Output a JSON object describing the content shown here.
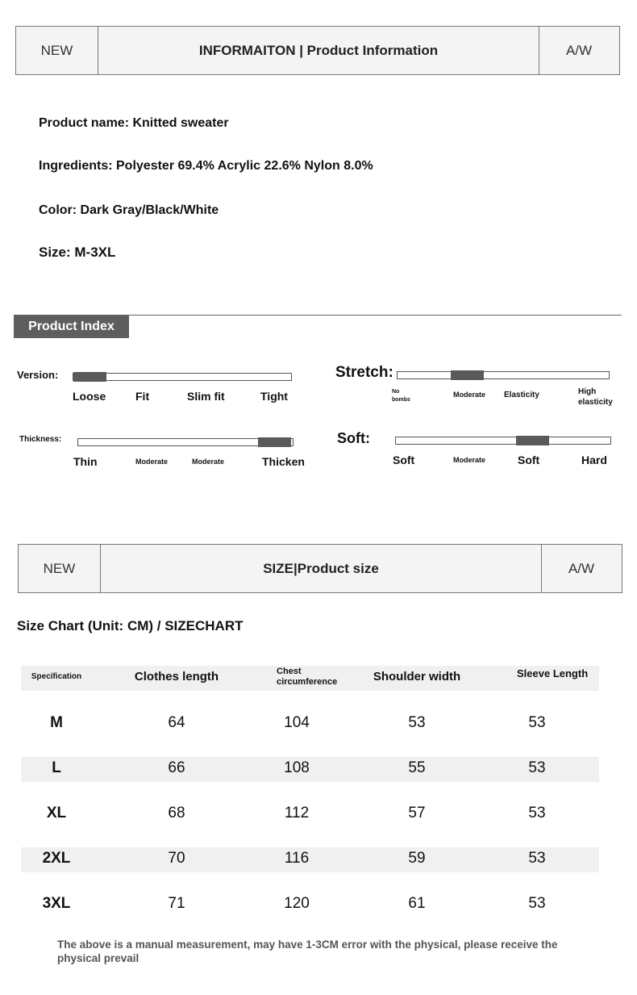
{
  "header1": {
    "left": "NEW",
    "title": "INFORMAITON | Product Information",
    "right": "A/W"
  },
  "info": [
    "Product name: Knitted sweater",
    "Ingredients: Polyester 69.4% Acrylic 22.6% Nylon 8.0%",
    "Color: Dark Gray/Black/White",
    "Size: M-3XL"
  ],
  "index": {
    "title": "Product Index",
    "version": {
      "label": "Version:",
      "level": 0,
      "ticks": [
        "Loose",
        "Fit",
        "Slim fit",
        "Tight"
      ]
    },
    "stretch": {
      "label": "Stretch:",
      "level": 0.3,
      "ticks": [
        "No bombs",
        "Moderate",
        "Elasticity",
        "High elasticity"
      ]
    },
    "thickness": {
      "label": "Thickness:",
      "level": 0.99,
      "ticks": [
        "Thin",
        "Moderate",
        "Moderate",
        "Thicken"
      ]
    },
    "soft": {
      "label": "Soft:",
      "level": 0.66,
      "ticks": [
        "Soft",
        "Moderate",
        "Soft",
        "Hard"
      ]
    }
  },
  "header2": {
    "left": "NEW",
    "title": "SIZE|Product size",
    "right": "A/W"
  },
  "size_title": "Size Chart (Unit: CM) / SIZECHART",
  "table": {
    "headers": [
      "Specification",
      "Clothes length",
      "Chest circumference",
      "Shoulder width",
      "Sleeve Length"
    ],
    "rows": [
      [
        "M",
        "64",
        "104",
        "53",
        "53"
      ],
      [
        "L",
        "66",
        "108",
        "55",
        "53"
      ],
      [
        "XL",
        "68",
        "112",
        "57",
        "53"
      ],
      [
        "2XL",
        "70",
        "116",
        "59",
        "53"
      ],
      [
        "3XL",
        "71",
        "120",
        "61",
        "53"
      ]
    ]
  },
  "note": "The above is a manual measurement, may have 1-3CM error with the physical, please receive the physical prevail",
  "colors": {
    "indicator": "#5a5a5a",
    "band": "#f0f0f0",
    "tag": "#5e5e5e"
  }
}
